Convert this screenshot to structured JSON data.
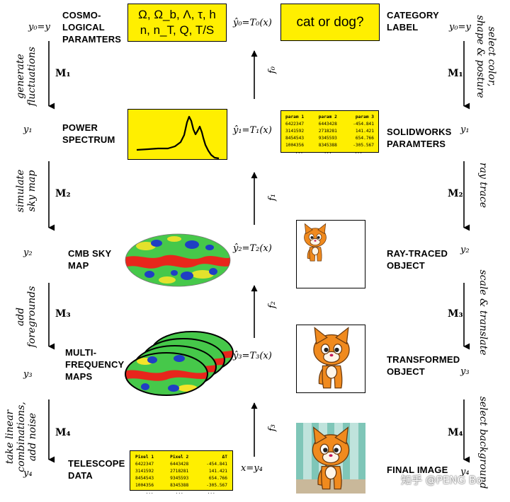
{
  "left": {
    "stages": [
      {
        "var": "y₀=y",
        "label_lines": [
          "COSMO-",
          "LOGICAL",
          "PARAMTERS"
        ]
      },
      {
        "var": "y₁",
        "label_lines": [
          "POWER",
          "SPECTRUM"
        ]
      },
      {
        "var": "y₂",
        "label_lines": [
          "CMB SKY",
          "MAP"
        ]
      },
      {
        "var": "y₃",
        "label_lines": [
          "MULTI-",
          "FREQUENCY",
          "MAPS"
        ]
      },
      {
        "var": "y₄",
        "label_lines": [
          "TELESCOPE",
          "DATA"
        ]
      }
    ],
    "steps": [
      {
        "m": "M₁",
        "verb_lines": [
          "generate",
          "fluctuations"
        ]
      },
      {
        "m": "M₂",
        "verb_lines": [
          "simulate",
          "sky map"
        ]
      },
      {
        "m": "M₃",
        "verb_lines": [
          "add",
          "foregrounds"
        ]
      },
      {
        "m": "M₄",
        "verb_lines": [
          "take linear",
          "combinations,",
          "add noise"
        ]
      }
    ]
  },
  "right": {
    "stages": [
      {
        "var": "y₀=y",
        "label_lines": [
          "CATEGORY",
          "LABEL"
        ]
      },
      {
        "var": "y₁",
        "label_lines": [
          "SOLIDWORKS",
          "PARAMTERS"
        ]
      },
      {
        "var": "y₂",
        "label_lines": [
          "RAY-TRACED",
          "OBJECT"
        ]
      },
      {
        "var": "y₃",
        "label_lines": [
          "TRANSFORMED",
          "OBJECT"
        ]
      },
      {
        "var": "y₄",
        "label_lines": [
          "FINAL IMAGE"
        ]
      }
    ],
    "steps": [
      {
        "m": "M₁",
        "verb_lines": [
          "select color,",
          "shape & posture"
        ]
      },
      {
        "m": "M₂",
        "verb_lines": [
          "ray trace"
        ]
      },
      {
        "m": "M₃",
        "verb_lines": [
          "scale & translate"
        ]
      },
      {
        "m": "M₄",
        "verb_lines": [
          "select background"
        ]
      }
    ]
  },
  "center": {
    "cosmo_params_lines": [
      "Ω, Ω_b, Λ, τ, h",
      "n, n_T, Q, T/S"
    ],
    "category_question": "cat or dog?",
    "transforms": [
      "ŷ₀=T₀(x)",
      "ŷ₁=T₁(x)",
      "ŷ₂=T₂(x)",
      "ŷ₃=T₃(x)",
      "x=y₄"
    ],
    "functions": [
      "f₀",
      "f₁",
      "f₂",
      "f₃"
    ]
  },
  "solidworks_table": {
    "headers": [
      "param 1",
      "param 2",
      "param 3"
    ],
    "rows": [
      [
        "6422347",
        "6443428",
        "-454.841"
      ],
      [
        "3141592",
        "2718281",
        "141.421"
      ],
      [
        "8454543",
        "9345593",
        "654.766"
      ],
      [
        "1004356",
        "8345388",
        "-305.567"
      ],
      [
        "...",
        "...",
        "..."
      ]
    ]
  },
  "telescope_table": {
    "headers": [
      "Pixel 1",
      "Pixel 2",
      "ΔT"
    ],
    "rows": [
      [
        "6422347",
        "6443428",
        "-454.841"
      ],
      [
        "3141592",
        "2718281",
        "141.421"
      ],
      [
        "8454543",
        "9345593",
        "654.766"
      ],
      [
        "1004356",
        "8345388",
        "-305.567"
      ],
      [
        "...",
        "...",
        "..."
      ]
    ]
  },
  "watermark": "知乎 @PENG Bo",
  "colors": {
    "highlight_yellow": "#ffef00",
    "cat_orange": "#f08a1e",
    "cmb_red": "#e8261c",
    "cmb_blue": "#1f3fc4",
    "cmb_green": "#3fcf3f"
  }
}
